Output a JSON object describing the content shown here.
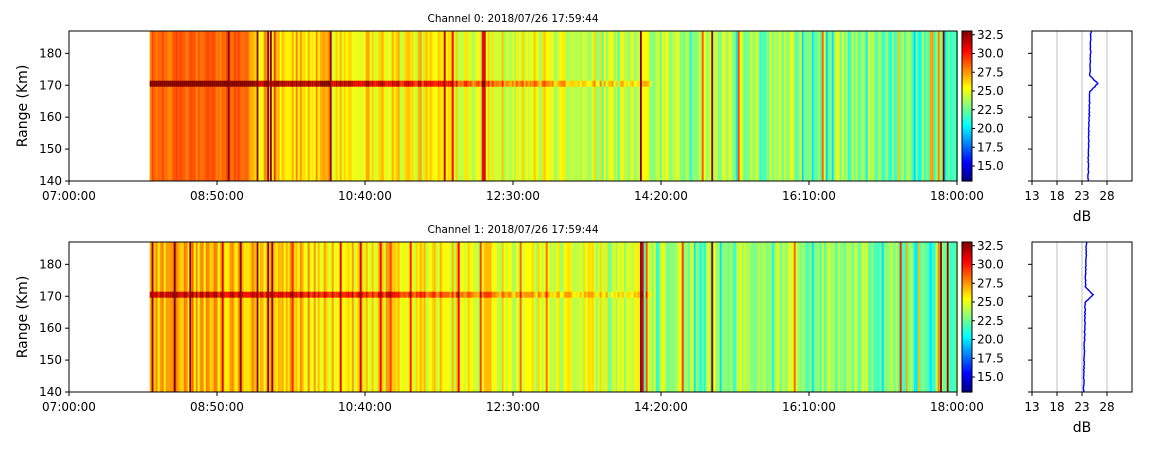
{
  "figure": {
    "colors": {
      "echo_core": "#e60000",
      "profile_line": "#0000ff",
      "grid": "#b0b0b0",
      "colorbar_scale": "jet"
    }
  },
  "chart_data": [
    {
      "type": "heatmap",
      "title": "Channel 0: 2018/07/26 17:59:44",
      "ylabel": "Range (Km)",
      "xlabel": "",
      "x_ticks": [
        "07:00:00",
        "08:50:00",
        "10:40:00",
        "12:30:00",
        "14:20:00",
        "16:10:00",
        "18:00:00"
      ],
      "xlim": [
        "07:00:00",
        "18:00:00"
      ],
      "y_ticks": [
        "140",
        "150",
        "160",
        "170",
        "180"
      ],
      "ylim": [
        140,
        187
      ],
      "data_start": "08:00:00",
      "data_end": "18:00:00",
      "echo_range_km": 170.5,
      "colorbar_ticks": [
        "15.0",
        "17.5",
        "20.0",
        "22.5",
        "25.0",
        "27.5",
        "30.0",
        "32.5"
      ],
      "colorbar_range": [
        13,
        33
      ],
      "profile": {
        "xlabel": "dB",
        "x_ticks": [
          "13",
          "18",
          "23",
          "28"
        ],
        "xlim": [
          13,
          33
        ],
        "ylim": [
          140,
          187
        ],
        "baseline_db": 24.2,
        "peak_db": 25.8,
        "peak_range_km": 170.5,
        "grid": true
      }
    },
    {
      "type": "heatmap",
      "title": "Channel 1: 2018/07/26 17:59:44",
      "ylabel": "Range (Km)",
      "xlabel": "",
      "x_ticks": [
        "07:00:00",
        "08:50:00",
        "10:40:00",
        "12:30:00",
        "14:20:00",
        "16:10:00",
        "18:00:00"
      ],
      "xlim": [
        "07:00:00",
        "18:00:00"
      ],
      "y_ticks": [
        "140",
        "150",
        "160",
        "170",
        "180"
      ],
      "ylim": [
        140,
        187
      ],
      "data_start": "08:00:00",
      "data_end": "18:00:00",
      "echo_range_km": 170.5,
      "colorbar_ticks": [
        "15.0",
        "17.5",
        "20.0",
        "22.5",
        "25.0",
        "27.5",
        "30.0",
        "32.5"
      ],
      "colorbar_range": [
        13,
        33
      ],
      "profile": {
        "xlabel": "dB",
        "x_ticks": [
          "13",
          "18",
          "23",
          "28"
        ],
        "xlim": [
          13,
          33
        ],
        "ylim": [
          140,
          187
        ],
        "baseline_db": 23.3,
        "peak_db": 24.8,
        "peak_range_km": 170.5,
        "grid": true
      }
    }
  ]
}
